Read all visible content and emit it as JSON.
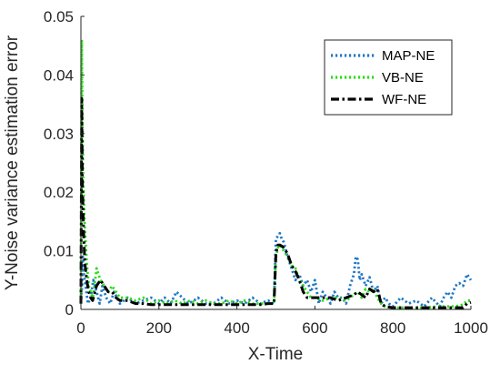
{
  "chart_data": {
    "type": "line",
    "title": "",
    "xlabel": "X-Time",
    "ylabel": "Y-Noise variance estimation error",
    "xlim": [
      0,
      1000
    ],
    "ylim": [
      0,
      0.05
    ],
    "xticks": [
      0,
      200,
      400,
      600,
      800,
      1000
    ],
    "xtick_labels": [
      "0",
      "200",
      "400",
      "600",
      "800",
      "1000"
    ],
    "yticks": [
      0,
      0.01,
      0.02,
      0.03,
      0.04,
      0.05
    ],
    "ytick_labels": [
      "0",
      "0.01",
      "0.02",
      "0.03",
      "0.04",
      "0.05"
    ],
    "grid": false,
    "legend_position": "top-right",
    "series": [
      {
        "name": "MAP-NE",
        "color": "#1f77c4",
        "dash": "dotted",
        "x": [
          0,
          3,
          5,
          8,
          12,
          18,
          25,
          32,
          40,
          48,
          55,
          65,
          75,
          85,
          100,
          120,
          140,
          160,
          180,
          200,
          215,
          230,
          245,
          260,
          275,
          290,
          300,
          320,
          340,
          360,
          380,
          400,
          420,
          440,
          460,
          480,
          495,
          500,
          505,
          510,
          515,
          520,
          530,
          540,
          550,
          560,
          570,
          580,
          590,
          600,
          610,
          620,
          630,
          640,
          650,
          660,
          670,
          680,
          690,
          700,
          705,
          710,
          715,
          720,
          730,
          740,
          750,
          760,
          770,
          780,
          790,
          800,
          820,
          840,
          860,
          880,
          900,
          920,
          930,
          940,
          950,
          960,
          970,
          980,
          990,
          1000
        ],
        "y": [
          0.001,
          0.004,
          0.009,
          0.006,
          0.004,
          0.001,
          0.002,
          0.005,
          0.003,
          0.001,
          0.004,
          0.002,
          0.001,
          0.003,
          0.001,
          0.002,
          0.001,
          0.0015,
          0.002,
          0.001,
          0.002,
          0.001,
          0.003,
          0.002,
          0.001,
          0.0015,
          0.002,
          0.001,
          0.001,
          0.002,
          0.001,
          0.0015,
          0.001,
          0.002,
          0.001,
          0.0015,
          0.001,
          0.012,
          0.0125,
          0.013,
          0.012,
          0.0115,
          0.009,
          0.007,
          0.005,
          0.006,
          0.004,
          0.005,
          0.003,
          0.005,
          0.001,
          0.003,
          0.002,
          0.001,
          0.003,
          0.002,
          0.002,
          0.001,
          0.004,
          0.006,
          0.009,
          0.0085,
          0.005,
          0.006,
          0.004,
          0.0055,
          0.003,
          0.004,
          0.001,
          0.002,
          0.001,
          0.0005,
          0.002,
          0.001,
          0.0015,
          0.0005,
          0.002,
          0.0005,
          0.002,
          0.003,
          0.002,
          0.004,
          0.0045,
          0.004,
          0.006,
          0.005
        ]
      },
      {
        "name": "VB-NE",
        "color": "#2bdc17",
        "dash": "dotted",
        "x": [
          0,
          2,
          4,
          6,
          10,
          15,
          20,
          25,
          30,
          35,
          40,
          45,
          50,
          60,
          70,
          80,
          90,
          100,
          120,
          140,
          160,
          180,
          200,
          220,
          240,
          260,
          280,
          300,
          320,
          340,
          360,
          380,
          400,
          420,
          440,
          460,
          480,
          495,
          500,
          505,
          510,
          515,
          520,
          530,
          540,
          550,
          560,
          570,
          580,
          590,
          600,
          620,
          640,
          660,
          680,
          700,
          710,
          720,
          730,
          740,
          750,
          760,
          770,
          780,
          800,
          820,
          840,
          860,
          880,
          900,
          920,
          940,
          960,
          980,
          990,
          1000
        ],
        "y": [
          0.001,
          0.046,
          0.032,
          0.021,
          0.014,
          0.008,
          0.004,
          0.003,
          0.002,
          0.004,
          0.007,
          0.006,
          0.005,
          0.004,
          0.003,
          0.004,
          0.003,
          0.002,
          0.002,
          0.0015,
          0.002,
          0.001,
          0.0015,
          0.001,
          0.0015,
          0.001,
          0.0015,
          0.001,
          0.0015,
          0.001,
          0.001,
          0.0015,
          0.001,
          0.0015,
          0.001,
          0.001,
          0.001,
          0.001,
          0.009,
          0.0105,
          0.011,
          0.0105,
          0.01,
          0.009,
          0.0075,
          0.007,
          0.005,
          0.004,
          0.003,
          0.002,
          0.002,
          0.0015,
          0.002,
          0.002,
          0.0015,
          0.0025,
          0.003,
          0.002,
          0.0035,
          0.003,
          0.0035,
          0.002,
          0.001,
          0.0005,
          0.0003,
          0.0003,
          0.0003,
          0.0003,
          0.0003,
          0.0004,
          0.0005,
          0.0005,
          0.0005,
          0.0008,
          0.0015,
          0.0015
        ]
      },
      {
        "name": "WF-NE",
        "color": "#000000",
        "dash": "dashdot",
        "x": [
          0,
          2,
          4,
          7,
          10,
          15,
          20,
          25,
          30,
          40,
          50,
          60,
          70,
          80,
          90,
          100,
          120,
          140,
          160,
          180,
          200,
          220,
          240,
          260,
          280,
          300,
          320,
          340,
          360,
          380,
          400,
          420,
          440,
          460,
          480,
          495,
          500,
          505,
          510,
          515,
          520,
          525,
          530,
          540,
          550,
          560,
          570,
          580,
          590,
          600,
          620,
          640,
          660,
          680,
          700,
          710,
          720,
          730,
          740,
          750,
          760,
          770,
          780,
          800,
          820,
          840,
          860,
          880,
          900,
          920,
          940,
          960,
          980,
          990,
          1000
        ],
        "y": [
          0.001,
          0.036,
          0.021,
          0.013,
          0.008,
          0.005,
          0.003,
          0.002,
          0.0015,
          0.004,
          0.005,
          0.004,
          0.003,
          0.003,
          0.002,
          0.0015,
          0.0015,
          0.001,
          0.001,
          0.0008,
          0.0008,
          0.0008,
          0.0008,
          0.0008,
          0.0008,
          0.0008,
          0.0008,
          0.0008,
          0.0008,
          0.0008,
          0.0008,
          0.0008,
          0.0008,
          0.0008,
          0.001,
          0.001,
          0.0095,
          0.011,
          0.011,
          0.0108,
          0.0105,
          0.01,
          0.0095,
          0.0075,
          0.0065,
          0.005,
          0.003,
          0.002,
          0.002,
          0.002,
          0.002,
          0.002,
          0.0015,
          0.002,
          0.0025,
          0.003,
          0.0025,
          0.002,
          0.0035,
          0.003,
          0.0035,
          0.001,
          0.0005,
          0.0003,
          0.0003,
          0.0003,
          0.0003,
          0.0003,
          0.0003,
          0.0003,
          0.0003,
          0.0003,
          0.0003,
          0.001,
          0.0012
        ]
      }
    ]
  }
}
